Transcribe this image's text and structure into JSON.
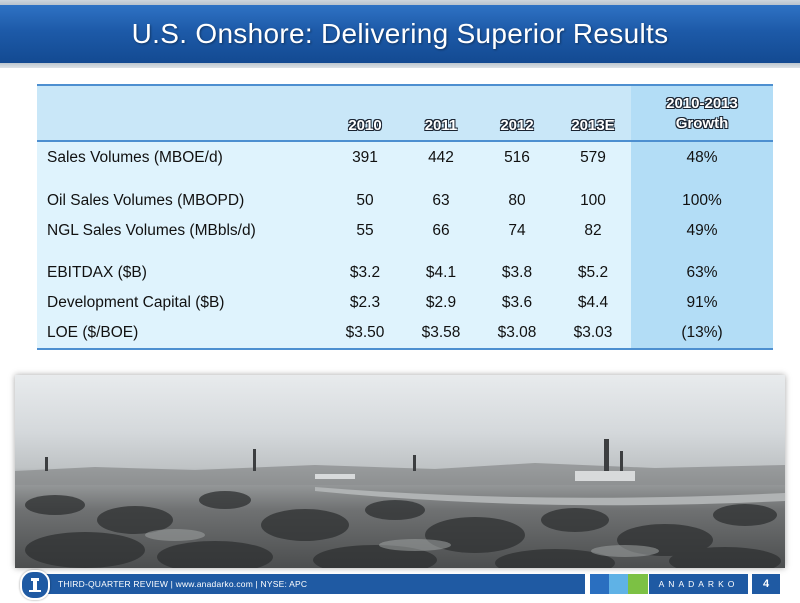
{
  "title": "U.S. Onshore: Delivering Superior Results",
  "table": {
    "headers": [
      "",
      "2010",
      "2011",
      "2012",
      "2013E",
      "2010-2013",
      "Growth"
    ],
    "rows": [
      {
        "label": "Sales Volumes (MBOE/d)",
        "v2010": "391",
        "v2011": "442",
        "v2012": "516",
        "v2013": "579",
        "growth": "48%"
      },
      {
        "label": "Oil Sales Volumes (MBOPD)",
        "v2010": "50",
        "v2011": "63",
        "v2012": "80",
        "v2013": "100",
        "growth": "100%"
      },
      {
        "label": "NGL Sales Volumes (MBbls/d)",
        "v2010": "55",
        "v2011": "66",
        "v2012": "74",
        "v2013": "82",
        "growth": "49%"
      },
      {
        "label": "EBITDAX ($B)",
        "v2010": "$3.2",
        "v2011": "$4.1",
        "v2012": "$3.8",
        "v2013": "$5.2",
        "growth": "63%"
      },
      {
        "label": "Development Capital ($B)",
        "v2010": "$2.3",
        "v2011": "$2.9",
        "v2012": "$3.6",
        "v2013": "$4.4",
        "growth": "91%"
      },
      {
        "label": "LOE ($/BOE)",
        "v2010": "$3.50",
        "v2011": "$3.58",
        "v2012": "$3.08",
        "v2013": "$3.03",
        "growth": "(13%)"
      }
    ]
  },
  "footer": {
    "text": "THIRD-QUARTER REVIEW | www.anadarko.com | NYSE: APC",
    "brand": "ANADARKO",
    "page": "4",
    "squares": [
      "#2a6fc0",
      "#5fb2e6",
      "#7cc144"
    ]
  },
  "colors": {
    "title_blue": "#1d5aa8",
    "table_bg": "#dff3fd",
    "growth_col": "#b3ddf6",
    "rule": "#4d8fd0"
  }
}
